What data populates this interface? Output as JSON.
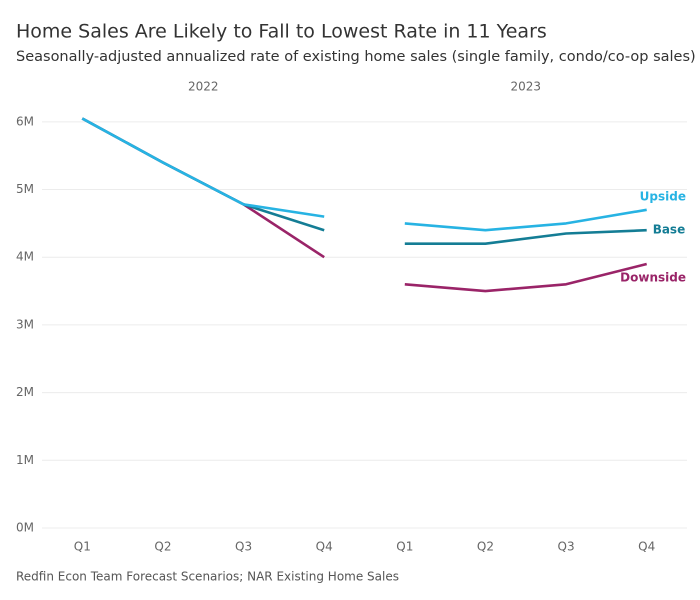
{
  "chart_data": {
    "type": "line",
    "title": "Home Sales Are Likely to Fall to Lowest Rate in 11 Years",
    "subtitle": "Seasonally-adjusted annualized rate of existing home sales (single family, condo/co-op sales)",
    "facets": [
      "2022",
      "2023"
    ],
    "categories": [
      "Q1",
      "Q2",
      "Q3",
      "Q4",
      "Q1",
      "Q2",
      "Q3",
      "Q4"
    ],
    "series": [
      {
        "name": "Upside",
        "color": "#27b3e3",
        "values": [
          6050000,
          5400000,
          4780000,
          4600000,
          4500000,
          4400000,
          4500000,
          4700000
        ]
      },
      {
        "name": "Base",
        "color": "#147d95",
        "values": [
          6050000,
          5400000,
          4780000,
          4400000,
          4200000,
          4200000,
          4350000,
          4400000
        ]
      },
      {
        "name": "Downside",
        "color": "#9a2468",
        "values": [
          6050000,
          5400000,
          4780000,
          4000000,
          3600000,
          3500000,
          3600000,
          3900000
        ]
      }
    ],
    "ylim": [
      0,
      6500000
    ],
    "yticks": [
      {
        "value": 0,
        "label": "0M"
      },
      {
        "value": 1000000,
        "label": "1M"
      },
      {
        "value": 2000000,
        "label": "2M"
      },
      {
        "value": 3000000,
        "label": "3M"
      },
      {
        "value": 4000000,
        "label": "4M"
      },
      {
        "value": 5000000,
        "label": "5M"
      },
      {
        "value": 6000000,
        "label": "6M"
      }
    ],
    "grid": true,
    "source": "Redfin Econ Team Forecast Scenarios; NAR Existing Home Sales"
  }
}
